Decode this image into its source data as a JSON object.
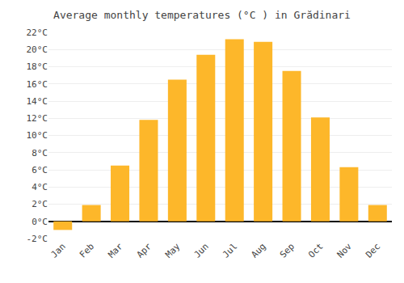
{
  "chart_data": {
    "type": "bar",
    "title": "Average monthly temperatures (°C ) in Grădinari",
    "categories": [
      "Jan",
      "Feb",
      "Mar",
      "Apr",
      "May",
      "Jun",
      "Jul",
      "Aug",
      "Sep",
      "Oct",
      "Nov",
      "Dec"
    ],
    "values": [
      -1.0,
      1.9,
      6.5,
      11.8,
      16.5,
      19.4,
      21.2,
      20.9,
      17.5,
      12.1,
      6.3,
      1.9
    ],
    "color": "#FDB72A",
    "ylim": [
      -2,
      22
    ],
    "yticks": [
      {
        "value": -2,
        "label": "-2°C"
      },
      {
        "value": 0,
        "label": "0°C"
      },
      {
        "value": 2,
        "label": "2°C"
      },
      {
        "value": 4,
        "label": "4°C"
      },
      {
        "value": 6,
        "label": "6°C"
      },
      {
        "value": 8,
        "label": "8°C"
      },
      {
        "value": 10,
        "label": "10°C"
      },
      {
        "value": 12,
        "label": "12°C"
      },
      {
        "value": 14,
        "label": "14°C"
      },
      {
        "value": 16,
        "label": "16°C"
      },
      {
        "value": 18,
        "label": "18°C"
      },
      {
        "value": 20,
        "label": "20°C"
      },
      {
        "value": 22,
        "label": "22°C"
      }
    ],
    "grid": true
  }
}
